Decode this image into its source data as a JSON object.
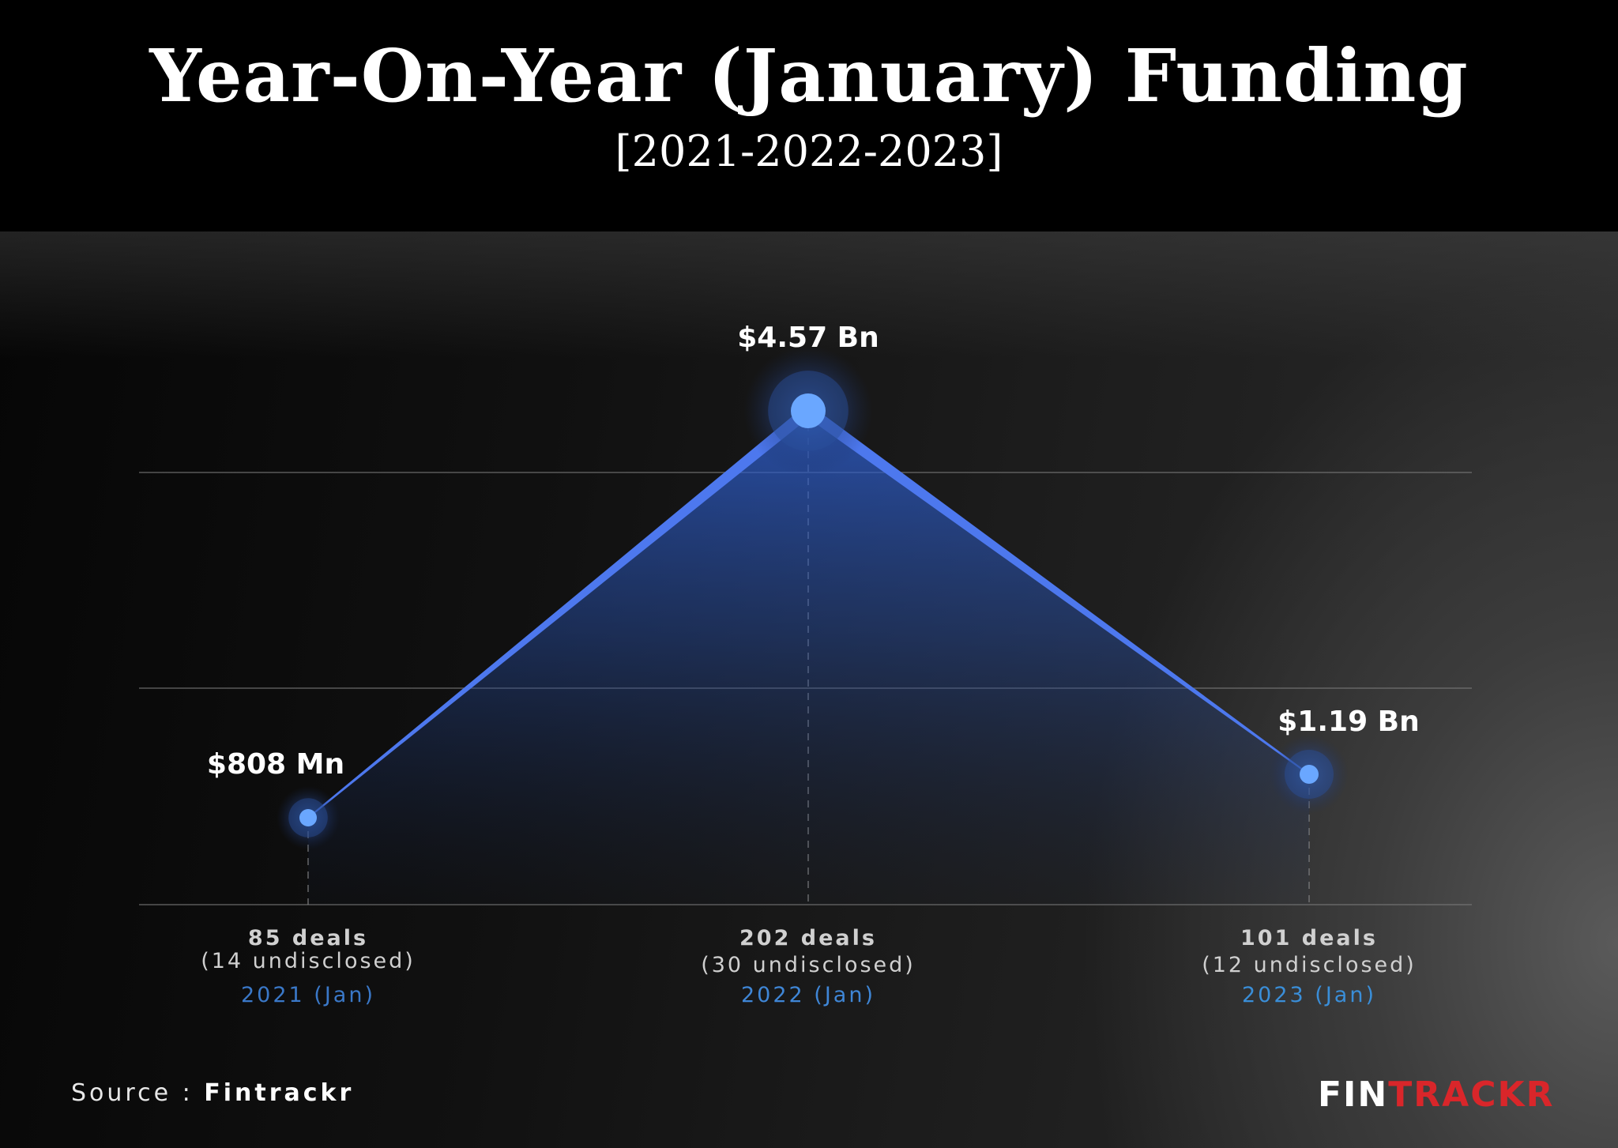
{
  "chart_data": {
    "type": "line",
    "title": "Year-On-Year (January) Funding",
    "subtitle": "[2021-2022-2023]",
    "unit": "USD",
    "points": [
      {
        "value_mn": 808,
        "label": "$808 Mn",
        "deals": "85 deals",
        "undisclosed": "(14 undisclosed)",
        "period": "2021 (Jan)"
      },
      {
        "value_mn": 4570,
        "label": "$4.57 Bn",
        "deals": "202 deals",
        "undisclosed": "(30 undisclosed)",
        "period": "2022 (Jan)"
      },
      {
        "value_mn": 1190,
        "label": "$1.19 Bn",
        "deals": "101 deals",
        "undisclosed": "(12 undisclosed)",
        "period": "2023 (Jan)"
      }
    ],
    "gridlines": true
  },
  "footer": {
    "source_prefix": "Source : ",
    "source_name": "Fintrackr"
  },
  "logo": {
    "part1": "FIN",
    "part2": "TRACKR"
  },
  "colors": {
    "line": "#4d78ee",
    "marker": "#6aa7ff",
    "period_2021": "#3a78c8",
    "period_2022": "#3f86d6",
    "period_2023": "#3a8ed8",
    "brand_red": "#d9262a"
  }
}
